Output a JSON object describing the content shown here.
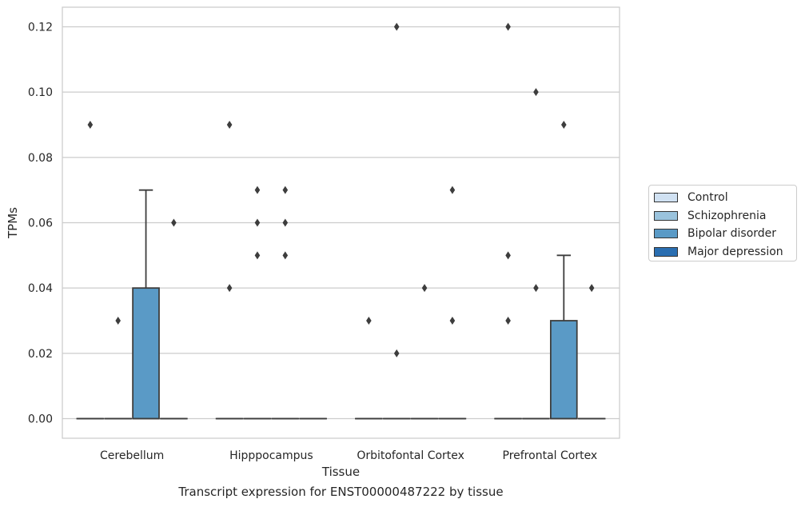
{
  "chart_data": {
    "type": "box",
    "title": "",
    "xlabel": "Tissue",
    "ylabel": "TPMs",
    "caption": "Transcript expression for ENST00000487222 by tissue",
    "categories": [
      "Cerebellum",
      "Hipppocampus",
      "Orbitofontal Cortex",
      "Prefrontal Cortex"
    ],
    "ylim": [
      -0.006,
      0.126
    ],
    "yticks": [
      "0.00",
      "0.02",
      "0.04",
      "0.06",
      "0.08",
      "0.10",
      "0.12"
    ],
    "grid": true,
    "legend_position": "right",
    "series": [
      {
        "name": "Control",
        "color": "#d0e1f2",
        "boxes": [
          {
            "q1": 0,
            "median": 0,
            "q3": 0,
            "whisker_low": 0,
            "whisker_high": 0,
            "outliers": [
              0.09
            ]
          },
          {
            "q1": 0,
            "median": 0,
            "q3": 0,
            "whisker_low": 0,
            "whisker_high": 0,
            "outliers": [
              0.09,
              0.04
            ]
          },
          {
            "q1": 0,
            "median": 0,
            "q3": 0,
            "whisker_low": 0,
            "whisker_high": 0,
            "outliers": [
              0.03
            ]
          },
          {
            "q1": 0,
            "median": 0,
            "q3": 0,
            "whisker_low": 0,
            "whisker_high": 0,
            "outliers": [
              0.12,
              0.05,
              0.03
            ]
          }
        ]
      },
      {
        "name": "Schizophrenia",
        "color": "#9ac3dd",
        "boxes": [
          {
            "q1": 0,
            "median": 0,
            "q3": 0,
            "whisker_low": 0,
            "whisker_high": 0,
            "outliers": [
              0.03
            ]
          },
          {
            "q1": 0,
            "median": 0,
            "q3": 0,
            "whisker_low": 0,
            "whisker_high": 0,
            "outliers": [
              0.07,
              0.06,
              0.05
            ]
          },
          {
            "q1": 0,
            "median": 0,
            "q3": 0,
            "whisker_low": 0,
            "whisker_high": 0,
            "outliers": [
              0.12,
              0.02
            ]
          },
          {
            "q1": 0,
            "median": 0,
            "q3": 0,
            "whisker_low": 0,
            "whisker_high": 0,
            "outliers": [
              0.1,
              0.04
            ]
          }
        ]
      },
      {
        "name": "Bipolar disorder",
        "color": "#5a9ac6",
        "boxes": [
          {
            "q1": 0,
            "median": 0,
            "q3": 0.04,
            "whisker_low": 0,
            "whisker_high": 0.07,
            "outliers": []
          },
          {
            "q1": 0,
            "median": 0,
            "q3": 0,
            "whisker_low": 0,
            "whisker_high": 0,
            "outliers": [
              0.07,
              0.06,
              0.05
            ]
          },
          {
            "q1": 0,
            "median": 0,
            "q3": 0,
            "whisker_low": 0,
            "whisker_high": 0,
            "outliers": [
              0.04
            ]
          },
          {
            "q1": 0,
            "median": 0,
            "q3": 0.03,
            "whisker_low": 0,
            "whisker_high": 0.05,
            "outliers": [
              0.09
            ]
          }
        ]
      },
      {
        "name": "Major depression",
        "color": "#2a6eb1",
        "boxes": [
          {
            "q1": 0,
            "median": 0,
            "q3": 0,
            "whisker_low": 0,
            "whisker_high": 0,
            "outliers": [
              0.06
            ]
          },
          {
            "q1": 0,
            "median": 0,
            "q3": 0,
            "whisker_low": 0,
            "whisker_high": 0,
            "outliers": []
          },
          {
            "q1": 0,
            "median": 0,
            "q3": 0,
            "whisker_low": 0,
            "whisker_high": 0,
            "outliers": [
              0.07,
              0.03
            ]
          },
          {
            "q1": 0,
            "median": 0,
            "q3": 0,
            "whisker_low": 0,
            "whisker_high": 0,
            "outliers": [
              0.04
            ]
          }
        ]
      }
    ]
  }
}
